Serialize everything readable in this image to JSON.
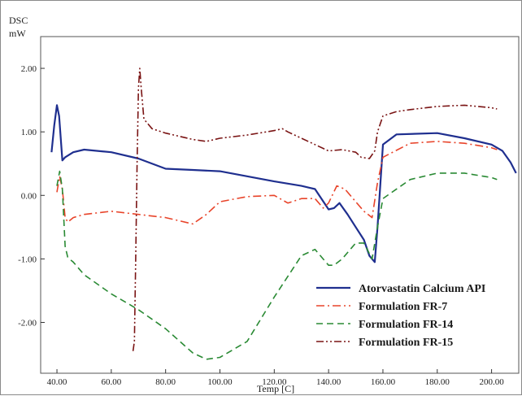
{
  "chart_data": {
    "type": "line",
    "title": "",
    "ylabel_top": "DSC",
    "ylabel_unit": "mW",
    "xlabel": "Temp  [C]",
    "xlim": [
      34,
      210
    ],
    "ylim": [
      -2.8,
      2.5
    ],
    "x_ticks": [
      40,
      60,
      80,
      100,
      120,
      140,
      160,
      180,
      200
    ],
    "x_tick_labels": [
      "40.00",
      "60.00",
      "80.00",
      "100.00",
      "120.00",
      "140.00",
      "160.00",
      "180.00",
      "200.00"
    ],
    "y_ticks": [
      2,
      1,
      0,
      -1,
      -2
    ],
    "y_tick_labels": [
      "2.00",
      "1.00",
      "0.00",
      "-1.00",
      "-2.00"
    ],
    "grid": false,
    "legend_position": "bottom-right",
    "series": [
      {
        "name": "Atorvastatin Calcium API",
        "color": "#1f2f8f",
        "dash": "solid",
        "points": [
          [
            38,
            0.68
          ],
          [
            39,
            1.1
          ],
          [
            40,
            1.42
          ],
          [
            40.8,
            1.25
          ],
          [
            42,
            0.55
          ],
          [
            43,
            0.6
          ],
          [
            46,
            0.68
          ],
          [
            50,
            0.72
          ],
          [
            60,
            0.68
          ],
          [
            70,
            0.58
          ],
          [
            80,
            0.42
          ],
          [
            90,
            0.4
          ],
          [
            100,
            0.38
          ],
          [
            110,
            0.3
          ],
          [
            120,
            0.22
          ],
          [
            130,
            0.15
          ],
          [
            135,
            0.1
          ],
          [
            140,
            -0.22
          ],
          [
            142,
            -0.2
          ],
          [
            144,
            -0.12
          ],
          [
            147,
            -0.3
          ],
          [
            150,
            -0.5
          ],
          [
            153,
            -0.7
          ],
          [
            155,
            -0.95
          ],
          [
            157,
            -1.05
          ],
          [
            158,
            -0.5
          ],
          [
            160,
            0.8
          ],
          [
            165,
            0.96
          ],
          [
            180,
            0.98
          ],
          [
            190,
            0.9
          ],
          [
            200,
            0.8
          ],
          [
            204,
            0.7
          ],
          [
            207,
            0.52
          ],
          [
            209,
            0.35
          ]
        ]
      },
      {
        "name": "Formulation FR-7",
        "color": "#e8442a",
        "dash": "dash-dot",
        "points": [
          [
            40,
            0.05
          ],
          [
            41,
            0.3
          ],
          [
            42,
            0.1
          ],
          [
            43,
            -0.35
          ],
          [
            44,
            -0.42
          ],
          [
            46,
            -0.35
          ],
          [
            50,
            -0.3
          ],
          [
            60,
            -0.25
          ],
          [
            70,
            -0.3
          ],
          [
            80,
            -0.35
          ],
          [
            90,
            -0.45
          ],
          [
            95,
            -0.3
          ],
          [
            100,
            -0.1
          ],
          [
            110,
            -0.02
          ],
          [
            120,
            0.0
          ],
          [
            125,
            -0.12
          ],
          [
            130,
            -0.05
          ],
          [
            135,
            -0.05
          ],
          [
            138,
            -0.2
          ],
          [
            140,
            -0.12
          ],
          [
            143,
            0.15
          ],
          [
            146,
            0.1
          ],
          [
            150,
            -0.1
          ],
          [
            153,
            -0.25
          ],
          [
            156,
            -0.35
          ],
          [
            158,
            0.2
          ],
          [
            160,
            0.6
          ],
          [
            170,
            0.82
          ],
          [
            180,
            0.85
          ],
          [
            190,
            0.82
          ],
          [
            200,
            0.75
          ],
          [
            202,
            0.72
          ]
        ]
      },
      {
        "name": "Formulation FR-14",
        "color": "#2a8a34",
        "dash": "dash",
        "points": [
          [
            40,
            0.15
          ],
          [
            41,
            0.38
          ],
          [
            42,
            0.1
          ],
          [
            43,
            -0.8
          ],
          [
            44,
            -0.98
          ],
          [
            46,
            -1.05
          ],
          [
            50,
            -1.25
          ],
          [
            60,
            -1.55
          ],
          [
            70,
            -1.8
          ],
          [
            80,
            -2.1
          ],
          [
            90,
            -2.48
          ],
          [
            95,
            -2.58
          ],
          [
            100,
            -2.55
          ],
          [
            110,
            -2.3
          ],
          [
            120,
            -1.6
          ],
          [
            130,
            -0.95
          ],
          [
            135,
            -0.85
          ],
          [
            140,
            -1.1
          ],
          [
            142,
            -1.1
          ],
          [
            145,
            -1.0
          ],
          [
            150,
            -0.75
          ],
          [
            153,
            -0.75
          ],
          [
            156,
            -1.0
          ],
          [
            158,
            -0.5
          ],
          [
            160,
            -0.05
          ],
          [
            170,
            0.25
          ],
          [
            180,
            0.35
          ],
          [
            190,
            0.35
          ],
          [
            200,
            0.28
          ],
          [
            202,
            0.25
          ]
        ]
      },
      {
        "name": "Formulation FR-15",
        "color": "#7a1414",
        "dash": "dash-dot-dot",
        "points": [
          [
            68,
            -2.45
          ],
          [
            68.5,
            -2.3
          ],
          [
            69,
            -1.0
          ],
          [
            69.5,
            0.5
          ],
          [
            70,
            1.7
          ],
          [
            70.5,
            2.0
          ],
          [
            71,
            1.7
          ],
          [
            72,
            1.2
          ],
          [
            75,
            1.05
          ],
          [
            80,
            0.98
          ],
          [
            90,
            0.88
          ],
          [
            95,
            0.85
          ],
          [
            100,
            0.9
          ],
          [
            110,
            0.95
          ],
          [
            120,
            1.02
          ],
          [
            123,
            1.05
          ],
          [
            125,
            1.0
          ],
          [
            130,
            0.9
          ],
          [
            135,
            0.8
          ],
          [
            140,
            0.7
          ],
          [
            145,
            0.72
          ],
          [
            150,
            0.68
          ],
          [
            152,
            0.6
          ],
          [
            155,
            0.58
          ],
          [
            157,
            0.7
          ],
          [
            158,
            1.0
          ],
          [
            160,
            1.25
          ],
          [
            165,
            1.32
          ],
          [
            170,
            1.35
          ],
          [
            180,
            1.4
          ],
          [
            190,
            1.42
          ],
          [
            200,
            1.38
          ],
          [
            202,
            1.36
          ]
        ]
      }
    ]
  }
}
